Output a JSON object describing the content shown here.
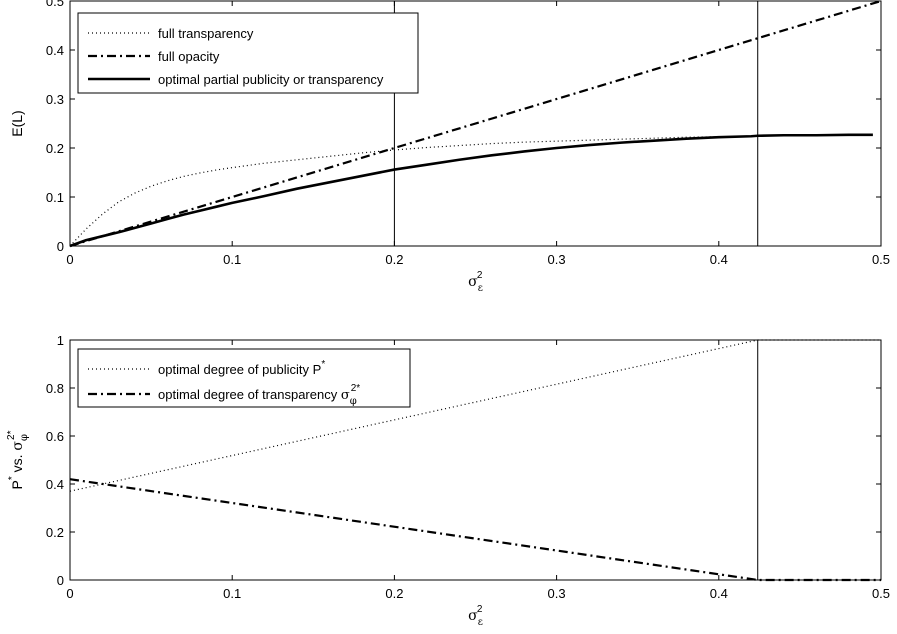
{
  "chart_data": [
    {
      "type": "line",
      "ylabel": "E(L)",
      "xlim": [
        0,
        0.5
      ],
      "ylim": [
        0,
        0.5
      ],
      "xticks": [
        "0",
        "0.1",
        "0.2",
        "0.3",
        "0.4",
        "0.5"
      ],
      "yticks": [
        "0",
        "0.1",
        "0.2",
        "0.3",
        "0.4",
        "0.5"
      ],
      "vlines": [
        0.2,
        0.424
      ],
      "legend_position": "top-left",
      "series": [
        {
          "name": "full transparency",
          "style": "dotted",
          "x": [
            0,
            0.01,
            0.02,
            0.03,
            0.04,
            0.05,
            0.06,
            0.07,
            0.08,
            0.09,
            0.1,
            0.12,
            0.14,
            0.16,
            0.18,
            0.2,
            0.22,
            0.24,
            0.26,
            0.28,
            0.3,
            0.32,
            0.34,
            0.36,
            0.38,
            0.4,
            0.42,
            0.424
          ],
          "y": [
            0,
            0.035,
            0.065,
            0.09,
            0.108,
            0.122,
            0.133,
            0.142,
            0.149,
            0.155,
            0.16,
            0.169,
            0.176,
            0.183,
            0.19,
            0.196,
            0.201,
            0.205,
            0.209,
            0.212,
            0.214,
            0.216,
            0.218,
            0.22,
            0.222,
            0.223,
            0.224,
            0.224
          ]
        },
        {
          "name": "full opacity",
          "style": "dashdot",
          "x": [
            0,
            0.5
          ],
          "y": [
            0,
            0.5
          ]
        },
        {
          "name": "optimal partial publicity or transparency",
          "style": "solid",
          "x": [
            0,
            0.01,
            0.02,
            0.03,
            0.04,
            0.05,
            0.06,
            0.07,
            0.08,
            0.09,
            0.1,
            0.12,
            0.14,
            0.16,
            0.18,
            0.2,
            0.22,
            0.24,
            0.26,
            0.28,
            0.3,
            0.32,
            0.34,
            0.36,
            0.38,
            0.4,
            0.42,
            0.424,
            0.44,
            0.46,
            0.48,
            0.495
          ],
          "y": [
            0,
            0.012,
            0.02,
            0.028,
            0.037,
            0.046,
            0.055,
            0.064,
            0.072,
            0.08,
            0.088,
            0.102,
            0.117,
            0.13,
            0.143,
            0.156,
            0.166,
            0.176,
            0.185,
            0.193,
            0.2,
            0.206,
            0.211,
            0.215,
            0.219,
            0.222,
            0.224,
            0.225,
            0.226,
            0.226,
            0.227,
            0.227
          ]
        }
      ]
    },
    {
      "type": "line",
      "xlim": [
        0,
        0.5
      ],
      "ylim": [
        0,
        1
      ],
      "xticks": [
        "0",
        "0.1",
        "0.2",
        "0.3",
        "0.4",
        "0.5"
      ],
      "yticks": [
        "0",
        "0.2",
        "0.4",
        "0.6",
        "0.8",
        "1"
      ],
      "vlines": [
        0.424
      ],
      "legend_position": "top-left",
      "series": [
        {
          "style": "dotted",
          "x": [
            0,
            0.424,
            0.5
          ],
          "y": [
            0.37,
            1,
            1
          ]
        },
        {
          "style": "dashdot",
          "x": [
            0,
            0.424,
            0.5
          ],
          "y": [
            0.42,
            0,
            0
          ]
        }
      ]
    }
  ]
}
